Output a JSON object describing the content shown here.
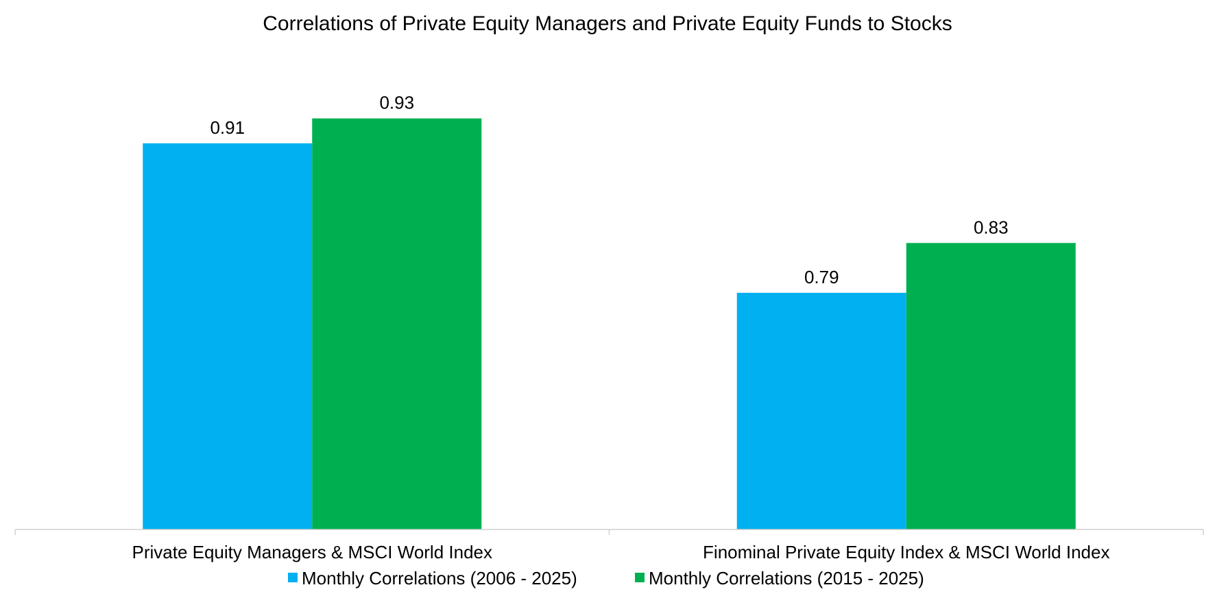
{
  "chart_data": {
    "type": "bar",
    "title": "Correlations of Private Equity Managers and Private Equity Funds to Stocks",
    "categories": [
      "Private Equity Managers & MSCI World Index",
      "Finominal Private Equity Index & MSCI World Index"
    ],
    "series": [
      {
        "name": "Monthly Correlations (2006 - 2025)",
        "values": [
          0.91,
          0.79
        ],
        "color": "#00b0f0"
      },
      {
        "name": "Monthly Correlations (2015 - 2025)",
        "values": [
          0.93,
          0.83
        ],
        "color": "#00b050"
      }
    ],
    "data_labels": [
      [
        "0.91",
        "0.79"
      ],
      [
        "0.93",
        "0.83"
      ]
    ],
    "xlabel": "",
    "ylabel": "",
    "ylim": [
      0.6,
      0.97
    ],
    "grid": false,
    "legend_position": "bottom"
  }
}
